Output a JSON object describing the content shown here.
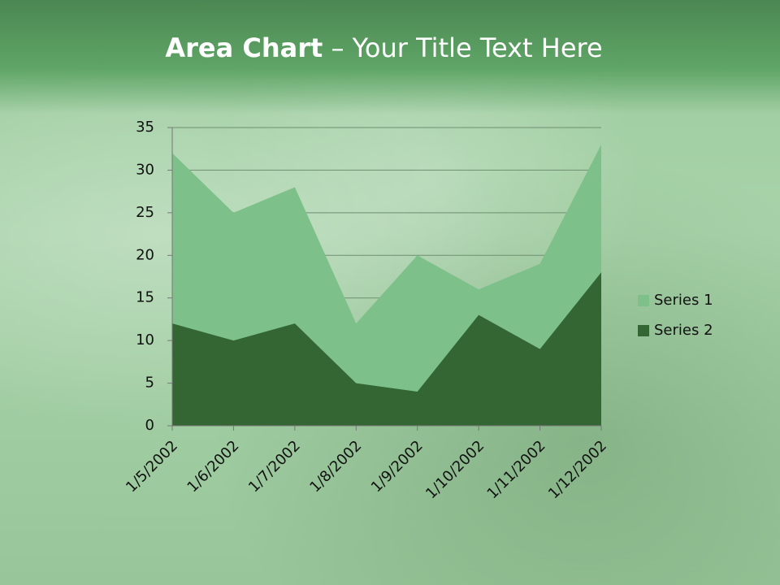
{
  "chart_data": {
    "type": "area",
    "title": [
      "Area Chart",
      "– Your Title Text Here"
    ],
    "categories": [
      "1/5/2002",
      "1/6/2002",
      "1/7/2002",
      "1/8/2002",
      "1/9/2002",
      "1/10/2002",
      "1/11/2002",
      "1/12/2002"
    ],
    "series": [
      {
        "name": "Series 1",
        "color": "#7dc08a",
        "values": [
          32,
          25,
          28,
          12,
          20,
          16,
          19,
          33
        ]
      },
      {
        "name": "Series 2",
        "color": "#336633",
        "values": [
          12,
          10,
          12,
          5,
          4,
          13,
          9,
          18
        ]
      }
    ],
    "ylim": [
      0,
      35
    ],
    "yticks": [
      0,
      5,
      10,
      15,
      20,
      25,
      30,
      35
    ],
    "grid": true,
    "legend": "right"
  }
}
